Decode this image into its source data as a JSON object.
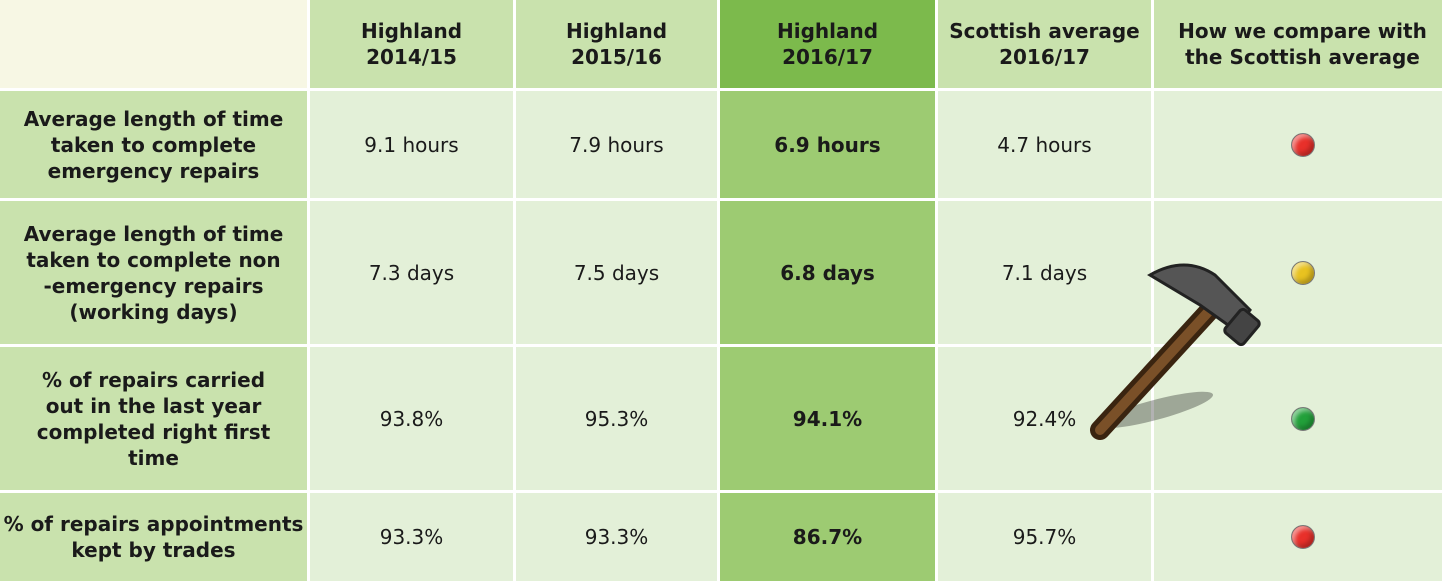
{
  "table": {
    "header": [
      [
        "Highland",
        "2014/15"
      ],
      [
        "Highland",
        "2015/16"
      ],
      [
        "Highland",
        "2016/17"
      ],
      [
        "Scottish average",
        "2016/17"
      ],
      [
        "How we compare with",
        "the Scottish average"
      ]
    ],
    "rows": [
      {
        "label": [
          "Average length of time",
          "taken to complete",
          "emergency repairs"
        ],
        "values": [
          "9.1 hours",
          "7.9 hours",
          "6.9 hours",
          "4.7 hours"
        ],
        "status_color": "#e8302a"
      },
      {
        "label": [
          "Average length of time",
          "taken to complete non",
          "-emergency repairs",
          "(working days)"
        ],
        "values": [
          "7.3 days",
          "7.5 days",
          "6.8 days",
          "7.1 days"
        ],
        "status_color": "#e8c220"
      },
      {
        "label": [
          "% of repairs carried",
          "out in the last year",
          "completed right first",
          "time"
        ],
        "values": [
          "93.8%",
          "95.3%",
          "94.1%",
          "92.4%"
        ],
        "status_color": "#22a03a"
      },
      {
        "label": [
          "% of repairs appointments",
          "kept by trades"
        ],
        "values": [
          "93.3%",
          "93.3%",
          "86.7%",
          "95.7%"
        ],
        "status_color": "#e8302a"
      }
    ]
  }
}
